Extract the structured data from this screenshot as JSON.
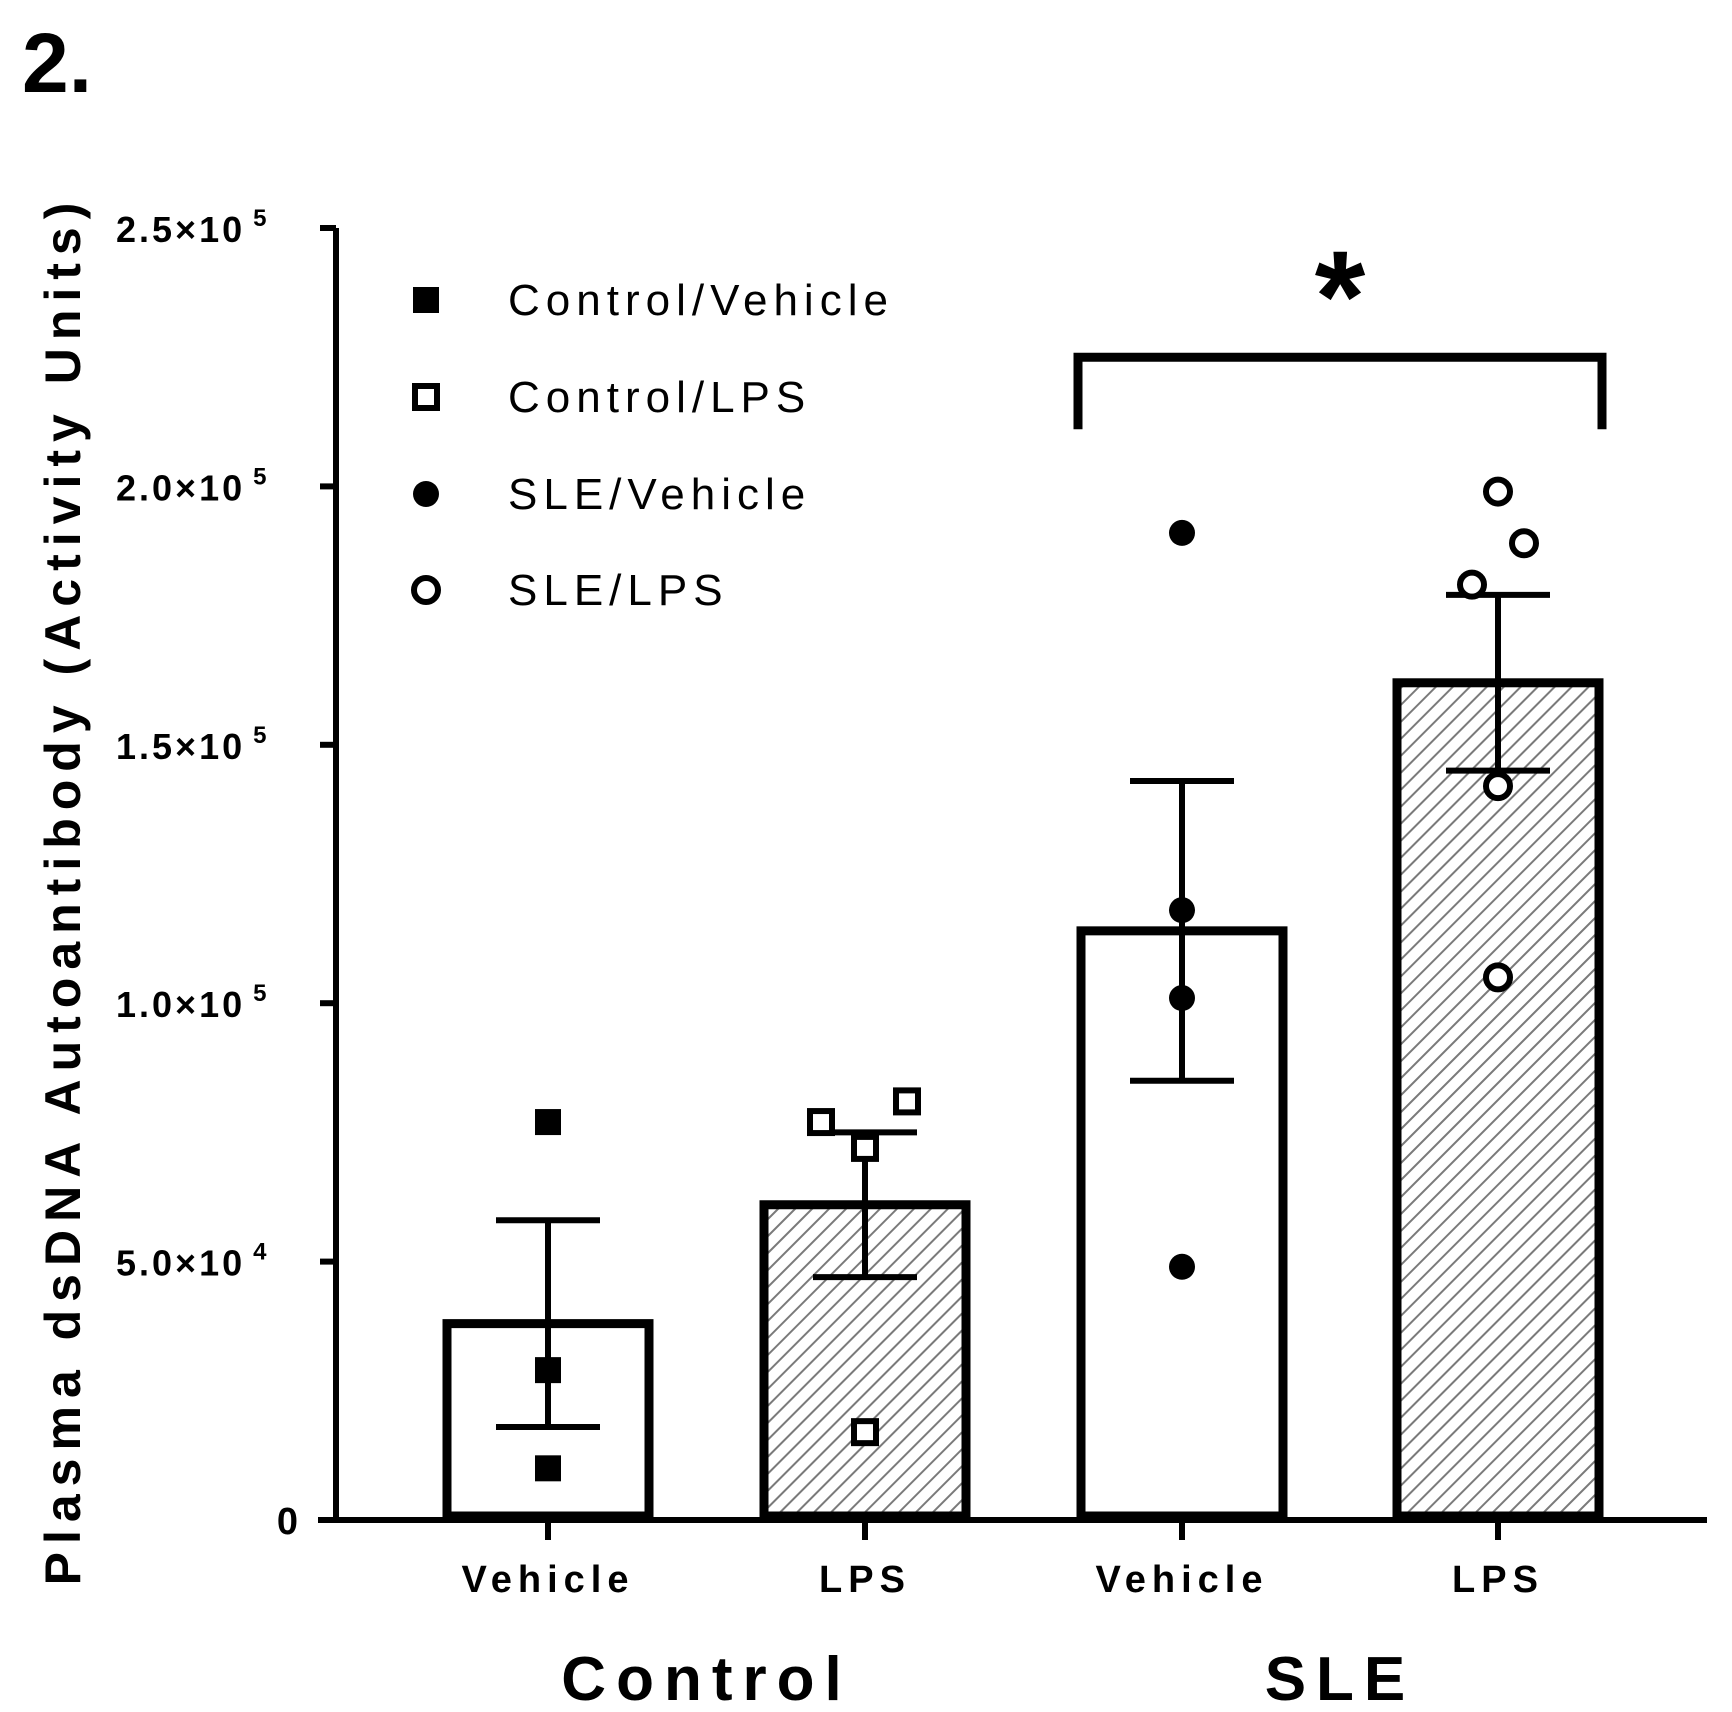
{
  "chart_data": {
    "type": "bar",
    "panel_label": "2.",
    "ylabel": "Plasma dsDNA Autoantibody  (Activity Units)",
    "ylim": [
      0,
      250000
    ],
    "yticks": [
      {
        "value": 0,
        "mantissa": "0",
        "power": ""
      },
      {
        "value": 50000,
        "mantissa": "5.0",
        "power": "4"
      },
      {
        "value": 100000,
        "mantissa": "1.0",
        "power": "5"
      },
      {
        "value": 150000,
        "mantissa": "1.5",
        "power": "5"
      },
      {
        "value": 200000,
        "mantissa": "2.0",
        "power": "5"
      },
      {
        "value": 250000,
        "mantissa": "2.5",
        "power": "5"
      }
    ],
    "ytick_times": "×10",
    "categories": [
      "Vehicle",
      "LPS",
      "Vehicle",
      "LPS"
    ],
    "groups": [
      {
        "label": "Control",
        "span": [
          0,
          1
        ]
      },
      {
        "label": "SLE",
        "span": [
          2,
          3
        ]
      }
    ],
    "bars": [
      {
        "name": "Control/Vehicle",
        "mean": 38000,
        "sem": 20000,
        "fill": "white",
        "marker": "filled-square",
        "points": [
          77000,
          29000,
          10000
        ]
      },
      {
        "name": "Control/LPS",
        "mean": 61000,
        "sem": 14000,
        "fill": "hatched",
        "marker": "open-square",
        "points": [
          77000,
          81000,
          72000,
          17000
        ]
      },
      {
        "name": "SLE/Vehicle",
        "mean": 114000,
        "sem": 29000,
        "fill": "white",
        "marker": "filled-circle",
        "points": [
          191000,
          118000,
          101000,
          49000
        ]
      },
      {
        "name": "SLE/LPS",
        "mean": 162000,
        "sem": 17000,
        "fill": "hatched",
        "marker": "open-circle",
        "points": [
          199000,
          189000,
          181000,
          142000,
          105000
        ]
      }
    ],
    "legend": [
      {
        "label": "Control/Vehicle",
        "marker": "filled-square"
      },
      {
        "label": "Control/LPS",
        "marker": "open-square"
      },
      {
        "label": "SLE/Vehicle",
        "marker": "filled-circle"
      },
      {
        "label": "SLE/LPS",
        "marker": "open-circle"
      }
    ],
    "significance": {
      "from": 2,
      "to": 3,
      "label": "*",
      "level": 225000
    }
  }
}
